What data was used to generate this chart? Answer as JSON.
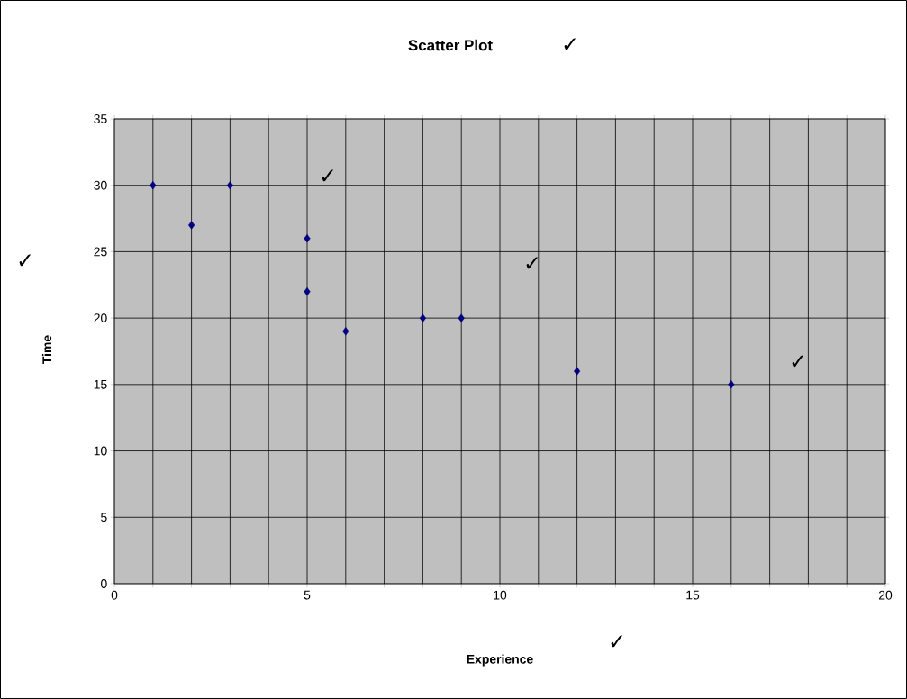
{
  "chart_data": {
    "type": "scatter",
    "title": "Scatter Plot",
    "xlabel": "Experience",
    "ylabel": "Time",
    "x": [
      1,
      2,
      3,
      5,
      5,
      6,
      8,
      9,
      12,
      16
    ],
    "values": [
      30,
      27,
      30,
      26,
      22,
      19,
      20,
      20,
      16,
      15
    ],
    "color": "#000080",
    "marker": "diamond",
    "grid": true,
    "xlim": [
      0,
      20
    ],
    "ylim": [
      0,
      35
    ],
    "xticks": [
      0,
      {
        "value": 1,
        "label": null
      },
      {
        "value": 2,
        "label": null
      },
      {
        "value": 3,
        "label": null
      },
      {
        "value": 4,
        "label": null
      },
      5,
      {
        "value": 6,
        "label": null
      },
      {
        "value": 7,
        "label": null
      },
      {
        "value": 8,
        "label": null
      },
      {
        "value": 9,
        "label": null
      },
      10,
      {
        "value": 11,
        "label": null
      },
      {
        "value": 12,
        "label": null
      },
      {
        "value": 13,
        "label": null
      },
      {
        "value": 14,
        "label": null
      },
      15,
      {
        "value": 16,
        "label": null
      },
      {
        "value": 17,
        "label": null
      },
      {
        "value": 18,
        "label": null
      },
      {
        "value": 19,
        "label": null
      },
      20
    ],
    "yticks": [
      0,
      5,
      10,
      15,
      20,
      25,
      30,
      35
    ],
    "annotations": [
      "✓",
      "✓",
      "✓",
      "✓",
      "✓",
      "✓"
    ]
  }
}
